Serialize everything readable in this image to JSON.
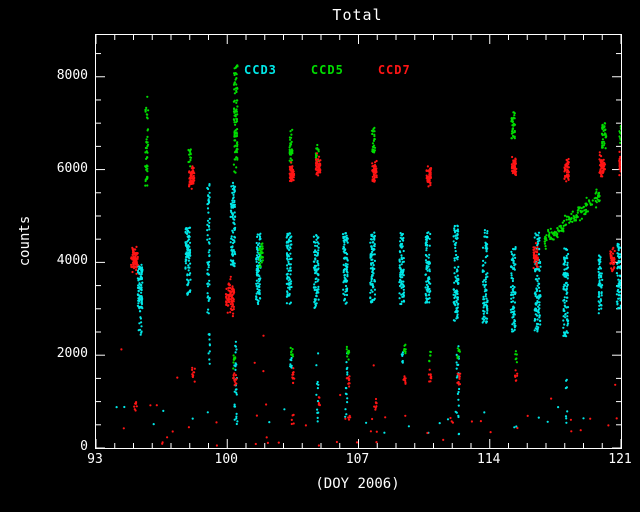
{
  "title": "Total",
  "axis_labels": {
    "x": "(DOY 2006)",
    "y": "counts"
  },
  "legend": [
    {
      "label": "CCD3",
      "color": "#00E8E8"
    },
    {
      "label": "CCD5",
      "color": "#00DC00"
    },
    {
      "label": "CCD7",
      "color": "#FF1515"
    }
  ],
  "colors": {
    "background": "#000000",
    "axes": "#FFFFFF",
    "text": "#FFFFFF"
  },
  "chart_data": {
    "type": "scatter",
    "title": "Total",
    "xlabel": "(DOY 2006)",
    "ylabel": "counts",
    "xlim": [
      93,
      121
    ],
    "ylim": [
      0,
      8900
    ],
    "xticks": [
      93,
      100,
      107,
      114,
      121
    ],
    "yticks": [
      0,
      2000,
      4000,
      6000,
      8000
    ],
    "x_minor_step": 1,
    "y_minor_step": 500,
    "grid": false,
    "legend_position": "top-inside",
    "series": [
      {
        "name": "CCD3",
        "color": "#00E8E8"
      },
      {
        "name": "CCD5",
        "color": "#00DC00"
      },
      {
        "name": "CCD7",
        "color": "#FF1515"
      }
    ],
    "clusters_note": "Dense point groups read off the plot. t: g=gaussian blob (x center+-dx, y mean, sd), u=uniform vertical band (y0..y1), d=diagonal band (x0,y0 -> x1,y1), r=sparse uniform rectangle. x in DOY 2006, y in counts.",
    "clusters": [
      {
        "s": "CCD3",
        "t": "u",
        "x": 95.35,
        "dx": 0.13,
        "y0": 3000,
        "y1": 3950,
        "n": 85
      },
      {
        "s": "CCD3",
        "t": "u",
        "x": 95.35,
        "dx": 0.1,
        "y0": 2400,
        "y1": 3000,
        "n": 12
      },
      {
        "s": "CCD3",
        "t": "u",
        "x": 97.9,
        "dx": 0.13,
        "y0": 3850,
        "y1": 4750,
        "n": 75
      },
      {
        "s": "CCD3",
        "t": "u",
        "x": 97.95,
        "dx": 0.1,
        "y0": 3300,
        "y1": 3850,
        "n": 20
      },
      {
        "s": "CCD3",
        "t": "u",
        "x": 99.0,
        "dx": 0.07,
        "y0": 2900,
        "y1": 5700,
        "n": 60
      },
      {
        "s": "CCD3",
        "t": "u",
        "x": 99.05,
        "dx": 0.05,
        "y0": 1500,
        "y1": 2600,
        "n": 10
      },
      {
        "s": "CCD3",
        "t": "u",
        "x": 100.3,
        "dx": 0.12,
        "y0": 3900,
        "y1": 5750,
        "n": 90
      },
      {
        "s": "CCD3",
        "t": "u",
        "x": 100.45,
        "dx": 0.07,
        "y0": 400,
        "y1": 2500,
        "n": 25
      },
      {
        "s": "CCD3",
        "t": "u",
        "x": 101.65,
        "dx": 0.13,
        "y0": 3100,
        "y1": 4650,
        "n": 85
      },
      {
        "s": "CCD3",
        "t": "u",
        "x": 103.3,
        "dx": 0.13,
        "y0": 3100,
        "y1": 4650,
        "n": 85
      },
      {
        "s": "CCD3",
        "t": "u",
        "x": 103.4,
        "dx": 0.05,
        "y0": 1600,
        "y1": 2000,
        "n": 8
      },
      {
        "s": "CCD3",
        "t": "u",
        "x": 104.75,
        "dx": 0.13,
        "y0": 3000,
        "y1": 4600,
        "n": 85
      },
      {
        "s": "CCD3",
        "t": "u",
        "x": 104.8,
        "dx": 0.06,
        "y0": 500,
        "y1": 2200,
        "n": 12
      },
      {
        "s": "CCD3",
        "t": "u",
        "x": 106.3,
        "dx": 0.13,
        "y0": 3100,
        "y1": 4650,
        "n": 85
      },
      {
        "s": "CCD3",
        "t": "u",
        "x": 106.35,
        "dx": 0.06,
        "y0": 500,
        "y1": 2100,
        "n": 15
      },
      {
        "s": "CCD3",
        "t": "u",
        "x": 107.75,
        "dx": 0.13,
        "y0": 3100,
        "y1": 4650,
        "n": 85
      },
      {
        "s": "CCD3",
        "t": "u",
        "x": 109.3,
        "dx": 0.13,
        "y0": 3100,
        "y1": 4650,
        "n": 85
      },
      {
        "s": "CCD3",
        "t": "u",
        "x": 109.35,
        "dx": 0.05,
        "y0": 1700,
        "y1": 2100,
        "n": 8
      },
      {
        "s": "CCD3",
        "t": "u",
        "x": 110.7,
        "dx": 0.13,
        "y0": 3100,
        "y1": 4650,
        "n": 85
      },
      {
        "s": "CCD3",
        "t": "u",
        "x": 112.2,
        "dx": 0.13,
        "y0": 2700,
        "y1": 4800,
        "n": 95
      },
      {
        "s": "CCD3",
        "t": "u",
        "x": 112.3,
        "dx": 0.07,
        "y0": 300,
        "y1": 2200,
        "n": 25
      },
      {
        "s": "CCD3",
        "t": "u",
        "x": 113.75,
        "dx": 0.13,
        "y0": 2700,
        "y1": 4700,
        "n": 85
      },
      {
        "s": "CCD3",
        "t": "u",
        "x": 115.25,
        "dx": 0.13,
        "y0": 2500,
        "y1": 4400,
        "n": 85
      },
      {
        "s": "CCD3",
        "t": "u",
        "x": 116.55,
        "dx": 0.16,
        "y0": 2500,
        "y1": 4650,
        "n": 115
      },
      {
        "s": "CCD3",
        "t": "u",
        "x": 118.05,
        "dx": 0.13,
        "y0": 2400,
        "y1": 4300,
        "n": 95
      },
      {
        "s": "CCD3",
        "t": "u",
        "x": 118.1,
        "dx": 0.05,
        "y0": 500,
        "y1": 1500,
        "n": 8
      },
      {
        "s": "CCD3",
        "t": "u",
        "x": 119.9,
        "dx": 0.1,
        "y0": 2900,
        "y1": 4200,
        "n": 55
      },
      {
        "s": "CCD3",
        "t": "u",
        "x": 120.9,
        "dx": 0.13,
        "y0": 3000,
        "y1": 4400,
        "n": 75
      },
      {
        "s": "CCD3",
        "t": "r",
        "x0": 93.5,
        "x1": 121,
        "y0": 100,
        "y1": 900,
        "n": 25
      },
      {
        "s": "CCD5",
        "t": "u",
        "x": 95.7,
        "dx": 0.08,
        "y0": 5600,
        "y1": 7600,
        "n": 45
      },
      {
        "s": "CCD5",
        "t": "g",
        "x": 98.0,
        "dx": 0.07,
        "y": 6250,
        "sd": 140,
        "n": 14
      },
      {
        "s": "CCD5",
        "t": "u",
        "x": 100.45,
        "dx": 0.1,
        "y0": 5900,
        "y1": 8250,
        "n": 95
      },
      {
        "s": "CCD5",
        "t": "g",
        "x": 100.4,
        "dx": 0.08,
        "y": 1870,
        "sd": 90,
        "n": 8
      },
      {
        "s": "CCD5",
        "t": "g",
        "x": 101.8,
        "dx": 0.1,
        "y": 4150,
        "sd": 110,
        "n": 30
      },
      {
        "s": "CCD5",
        "t": "u",
        "x": 103.4,
        "dx": 0.08,
        "y0": 6100,
        "y1": 6900,
        "n": 30
      },
      {
        "s": "CCD5",
        "t": "g",
        "x": 103.45,
        "dx": 0.07,
        "y": 2050,
        "sd": 90,
        "n": 8
      },
      {
        "s": "CCD5",
        "t": "g",
        "x": 104.8,
        "dx": 0.08,
        "y": 6350,
        "sd": 130,
        "n": 18
      },
      {
        "s": "CCD5",
        "t": "g",
        "x": 106.45,
        "dx": 0.08,
        "y": 2050,
        "sd": 90,
        "n": 10
      },
      {
        "s": "CCD5",
        "t": "u",
        "x": 107.8,
        "dx": 0.08,
        "y0": 6350,
        "y1": 6900,
        "n": 25
      },
      {
        "s": "CCD5",
        "t": "g",
        "x": 109.45,
        "dx": 0.07,
        "y": 2100,
        "sd": 90,
        "n": 8
      },
      {
        "s": "CCD5",
        "t": "g",
        "x": 110.8,
        "dx": 0.07,
        "y": 2000,
        "sd": 80,
        "n": 6
      },
      {
        "s": "CCD5",
        "t": "g",
        "x": 112.35,
        "dx": 0.07,
        "y": 2050,
        "sd": 90,
        "n": 8
      },
      {
        "s": "CCD5",
        "t": "u",
        "x": 115.25,
        "dx": 0.1,
        "y0": 6650,
        "y1": 7250,
        "n": 35
      },
      {
        "s": "CCD5",
        "t": "g",
        "x": 115.4,
        "dx": 0.06,
        "y": 2000,
        "sd": 80,
        "n": 6
      },
      {
        "s": "CCD5",
        "t": "d",
        "x0": 116.9,
        "y0": 4450,
        "x1": 119.9,
        "y1": 5450,
        "sd": 80,
        "n": 140
      },
      {
        "s": "CCD5",
        "t": "u",
        "x": 120.1,
        "dx": 0.12,
        "y0": 6450,
        "y1": 7000,
        "n": 35
      },
      {
        "s": "CCD5",
        "t": "u",
        "x": 121.0,
        "dx": 0.08,
        "y0": 6500,
        "y1": 7000,
        "n": 20
      },
      {
        "s": "CCD7",
        "t": "g",
        "x": 95.05,
        "dx": 0.18,
        "y": 4050,
        "sd": 130,
        "n": 75
      },
      {
        "s": "CCD7",
        "t": "g",
        "x": 95.1,
        "dx": 0.08,
        "y": 900,
        "sd": 70,
        "n": 7
      },
      {
        "s": "CCD7",
        "t": "g",
        "x": 98.1,
        "dx": 0.14,
        "y": 5820,
        "sd": 110,
        "n": 55
      },
      {
        "s": "CCD7",
        "t": "g",
        "x": 98.2,
        "dx": 0.08,
        "y": 1550,
        "sd": 80,
        "n": 10
      },
      {
        "s": "CCD7",
        "t": "g",
        "x": 100.15,
        "dx": 0.22,
        "y": 3250,
        "sd": 180,
        "n": 90
      },
      {
        "s": "CCD7",
        "t": "g",
        "x": 100.4,
        "dx": 0.1,
        "y": 1500,
        "sd": 90,
        "n": 12
      },
      {
        "s": "CCD7",
        "t": "g",
        "x": 103.45,
        "dx": 0.12,
        "y": 5900,
        "sd": 100,
        "n": 50
      },
      {
        "s": "CCD7",
        "t": "g",
        "x": 103.5,
        "dx": 0.08,
        "y": 1500,
        "sd": 80,
        "n": 12
      },
      {
        "s": "CCD7",
        "t": "g",
        "x": 103.5,
        "dx": 0.06,
        "y": 620,
        "sd": 60,
        "n": 5
      },
      {
        "s": "CCD7",
        "t": "g",
        "x": 104.85,
        "dx": 0.12,
        "y": 6050,
        "sd": 110,
        "n": 50
      },
      {
        "s": "CCD7",
        "t": "g",
        "x": 104.9,
        "dx": 0.06,
        "y": 1000,
        "sd": 70,
        "n": 6
      },
      {
        "s": "CCD7",
        "t": "g",
        "x": 106.45,
        "dx": 0.08,
        "y": 1500,
        "sd": 80,
        "n": 10
      },
      {
        "s": "CCD7",
        "t": "g",
        "x": 106.5,
        "dx": 0.06,
        "y": 650,
        "sd": 60,
        "n": 5
      },
      {
        "s": "CCD7",
        "t": "g",
        "x": 107.85,
        "dx": 0.12,
        "y": 5950,
        "sd": 100,
        "n": 50
      },
      {
        "s": "CCD7",
        "t": "g",
        "x": 107.9,
        "dx": 0.07,
        "y": 900,
        "sd": 80,
        "n": 8
      },
      {
        "s": "CCD7",
        "t": "g",
        "x": 109.45,
        "dx": 0.08,
        "y": 1500,
        "sd": 80,
        "n": 10
      },
      {
        "s": "CCD7",
        "t": "g",
        "x": 110.75,
        "dx": 0.12,
        "y": 5850,
        "sd": 100,
        "n": 45
      },
      {
        "s": "CCD7",
        "t": "g",
        "x": 110.8,
        "dx": 0.08,
        "y": 1550,
        "sd": 80,
        "n": 10
      },
      {
        "s": "CCD7",
        "t": "g",
        "x": 112.35,
        "dx": 0.08,
        "y": 1500,
        "sd": 80,
        "n": 10
      },
      {
        "s": "CCD7",
        "t": "g",
        "x": 115.3,
        "dx": 0.12,
        "y": 6050,
        "sd": 110,
        "n": 50
      },
      {
        "s": "CCD7",
        "t": "g",
        "x": 115.4,
        "dx": 0.07,
        "y": 1550,
        "sd": 80,
        "n": 8
      },
      {
        "s": "CCD7",
        "t": "g",
        "x": 116.45,
        "dx": 0.12,
        "y": 4150,
        "sd": 120,
        "n": 45
      },
      {
        "s": "CCD7",
        "t": "g",
        "x": 118.1,
        "dx": 0.12,
        "y": 6000,
        "sd": 110,
        "n": 45
      },
      {
        "s": "CCD7",
        "t": "g",
        "x": 120.0,
        "dx": 0.15,
        "y": 6050,
        "sd": 120,
        "n": 55
      },
      {
        "s": "CCD7",
        "t": "g",
        "x": 120.55,
        "dx": 0.12,
        "y": 4050,
        "sd": 120,
        "n": 50
      },
      {
        "s": "CCD7",
        "t": "g",
        "x": 121.0,
        "dx": 0.1,
        "y": 6100,
        "sd": 130,
        "n": 40
      },
      {
        "s": "CCD7",
        "t": "r",
        "x0": 93.5,
        "x1": 121,
        "y0": 30,
        "y1": 700,
        "n": 40
      },
      {
        "s": "CCD7",
        "t": "r",
        "x0": 94,
        "x1": 121,
        "y0": 700,
        "y1": 2600,
        "n": 12
      }
    ]
  }
}
